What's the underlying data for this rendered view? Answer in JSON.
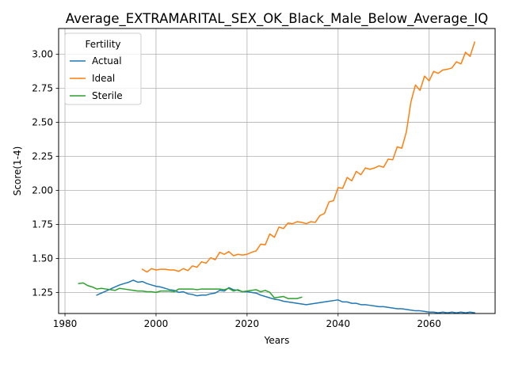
{
  "chart_data": {
    "type": "line",
    "title": "Average_EXTRAMARITAL_SEX_OK_Black_Male_Below_Average_IQ",
    "xlabel": "Years",
    "ylabel": "Score(1-4)",
    "xlim": [
      1978.6,
      2074.5
    ],
    "ylim": [
      1.095,
      3.19
    ],
    "xticks": [
      1980,
      2000,
      2020,
      2040,
      2060
    ],
    "yticks": [
      1.25,
      1.5,
      1.75,
      2.0,
      2.25,
      2.5,
      2.75,
      3.0
    ],
    "ytick_labels": [
      "1.25",
      "1.50",
      "1.75",
      "2.00",
      "2.25",
      "2.50",
      "2.75",
      "3.00"
    ],
    "grid": true,
    "legend": {
      "title": "Fertility",
      "placement": "top-left"
    },
    "series": [
      {
        "name": "Actual",
        "color": "#1f77b4",
        "x": [
          1987,
          1988,
          1989,
          1990,
          1991,
          1992,
          1993,
          1994,
          1995,
          1996,
          1997,
          1998,
          1999,
          2000,
          2001,
          2002,
          2003,
          2004,
          2005,
          2006,
          2007,
          2008,
          2009,
          2010,
          2011,
          2012,
          2013,
          2014,
          2015,
          2016,
          2017,
          2018,
          2019,
          2020,
          2021,
          2022,
          2023,
          2024,
          2025,
          2026,
          2027,
          2028,
          2029,
          2030,
          2031,
          2032,
          2033,
          2034,
          2035,
          2036,
          2037,
          2038,
          2039,
          2040,
          2041,
          2042,
          2043,
          2044,
          2045,
          2046,
          2047,
          2048,
          2049,
          2050,
          2051,
          2052,
          2053,
          2054,
          2055,
          2056,
          2057,
          2058,
          2059,
          2060,
          2061,
          2062,
          2063,
          2064,
          2065,
          2066,
          2067,
          2068,
          2069,
          2070
        ],
        "values": [
          1.23,
          1.245,
          1.26,
          1.275,
          1.29,
          1.305,
          1.315,
          1.325,
          1.34,
          1.325,
          1.33,
          1.315,
          1.305,
          1.295,
          1.29,
          1.28,
          1.27,
          1.265,
          1.25,
          1.255,
          1.24,
          1.235,
          1.225,
          1.23,
          1.23,
          1.24,
          1.245,
          1.265,
          1.26,
          1.285,
          1.27,
          1.265,
          1.255,
          1.255,
          1.25,
          1.245,
          1.23,
          1.22,
          1.21,
          1.2,
          1.195,
          1.185,
          1.18,
          1.175,
          1.17,
          1.165,
          1.16,
          1.165,
          1.17,
          1.175,
          1.18,
          1.185,
          1.19,
          1.195,
          1.18,
          1.18,
          1.17,
          1.17,
          1.16,
          1.16,
          1.155,
          1.15,
          1.145,
          1.145,
          1.14,
          1.135,
          1.13,
          1.13,
          1.125,
          1.12,
          1.115,
          1.115,
          1.11,
          1.105,
          1.105,
          1.1,
          1.105,
          1.1,
          1.105,
          1.1,
          1.105,
          1.1,
          1.105,
          1.1
        ]
      },
      {
        "name": "Ideal",
        "color": "#ff7f0e",
        "x": [
          1997,
          1998,
          1999,
          2000,
          2001,
          2002,
          2003,
          2004,
          2005,
          2006,
          2007,
          2008,
          2009,
          2010,
          2011,
          2012,
          2013,
          2014,
          2015,
          2016,
          2017,
          2018,
          2019,
          2020,
          2021,
          2022,
          2023,
          2024,
          2025,
          2026,
          2027,
          2028,
          2029,
          2030,
          2031,
          2032,
          2033,
          2034,
          2035,
          2036,
          2037,
          2038,
          2039,
          2040,
          2041,
          2042,
          2043,
          2044,
          2045,
          2046,
          2047,
          2048,
          2049,
          2050,
          2051,
          2052,
          2053,
          2054,
          2055,
          2056,
          2057,
          2058,
          2059,
          2060,
          2061,
          2062,
          2063,
          2064,
          2065,
          2066,
          2067,
          2068,
          2069,
          2070
        ],
        "values": [
          1.42,
          1.4,
          1.425,
          1.415,
          1.42,
          1.42,
          1.415,
          1.415,
          1.405,
          1.425,
          1.41,
          1.445,
          1.435,
          1.475,
          1.465,
          1.505,
          1.49,
          1.545,
          1.53,
          1.55,
          1.52,
          1.53,
          1.525,
          1.53,
          1.545,
          1.555,
          1.605,
          1.6,
          1.68,
          1.655,
          1.73,
          1.72,
          1.76,
          1.755,
          1.77,
          1.765,
          1.755,
          1.77,
          1.765,
          1.815,
          1.83,
          1.915,
          1.925,
          2.02,
          2.015,
          2.095,
          2.07,
          2.14,
          2.115,
          2.165,
          2.155,
          2.165,
          2.18,
          2.17,
          2.23,
          2.225,
          2.32,
          2.31,
          2.43,
          2.65,
          2.775,
          2.735,
          2.84,
          2.805,
          2.875,
          2.86,
          2.885,
          2.89,
          2.9,
          2.945,
          2.93,
          3.015,
          2.985,
          3.09
        ]
      },
      {
        "name": "Sterile",
        "color": "#2ca02c",
        "x": [
          1983,
          1984,
          1985,
          1986,
          1987,
          1988,
          1989,
          1990,
          1991,
          1992,
          1993,
          1994,
          1995,
          1996,
          1997,
          1998,
          1999,
          2000,
          2001,
          2002,
          2003,
          2004,
          2005,
          2006,
          2007,
          2008,
          2009,
          2010,
          2011,
          2012,
          2013,
          2014,
          2015,
          2016,
          2017,
          2018,
          2019,
          2020,
          2021,
          2022,
          2023,
          2024,
          2025,
          2026,
          2027,
          2028,
          2029,
          2030,
          2031,
          2032
        ],
        "values": [
          1.315,
          1.32,
          1.3,
          1.29,
          1.275,
          1.28,
          1.275,
          1.27,
          1.265,
          1.28,
          1.275,
          1.27,
          1.265,
          1.26,
          1.26,
          1.255,
          1.255,
          1.25,
          1.26,
          1.26,
          1.26,
          1.255,
          1.275,
          1.275,
          1.275,
          1.275,
          1.27,
          1.275,
          1.275,
          1.275,
          1.275,
          1.275,
          1.27,
          1.28,
          1.26,
          1.27,
          1.255,
          1.26,
          1.265,
          1.27,
          1.255,
          1.265,
          1.25,
          1.21,
          1.215,
          1.22,
          1.205,
          1.205,
          1.205,
          1.215
        ]
      }
    ]
  }
}
